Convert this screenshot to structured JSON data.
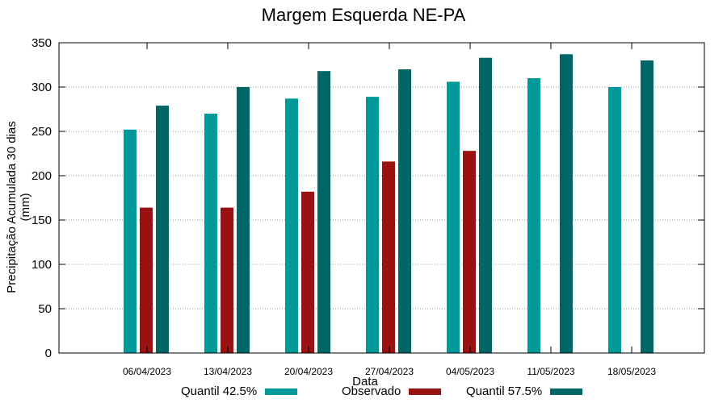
{
  "chart_data": {
    "type": "bar",
    "title": "Margem Esquerda NE-PA",
    "xlabel": "Data",
    "ylabel": "Precipitação Acumulada 30 dias (mm)",
    "ylim": [
      0,
      350
    ],
    "yticks": [
      0,
      50,
      100,
      150,
      200,
      250,
      300,
      350
    ],
    "grid": true,
    "legend_position": "bottom",
    "categories": [
      "06/04/2023",
      "13/04/2023",
      "20/04/2023",
      "27/04/2023",
      "04/05/2023",
      "11/05/2023",
      "18/05/2023"
    ],
    "series": [
      {
        "name": "Quantil 42.5%",
        "color": "#009999",
        "values": [
          252,
          270,
          287,
          289,
          306,
          310,
          300
        ]
      },
      {
        "name": "Observado",
        "color": "#991111",
        "values": [
          164,
          164,
          182,
          216,
          228,
          null,
          null
        ]
      },
      {
        "name": "Quantil 57.5%",
        "color": "#006666",
        "values": [
          279,
          300,
          318,
          320,
          333,
          337,
          330
        ]
      }
    ]
  }
}
